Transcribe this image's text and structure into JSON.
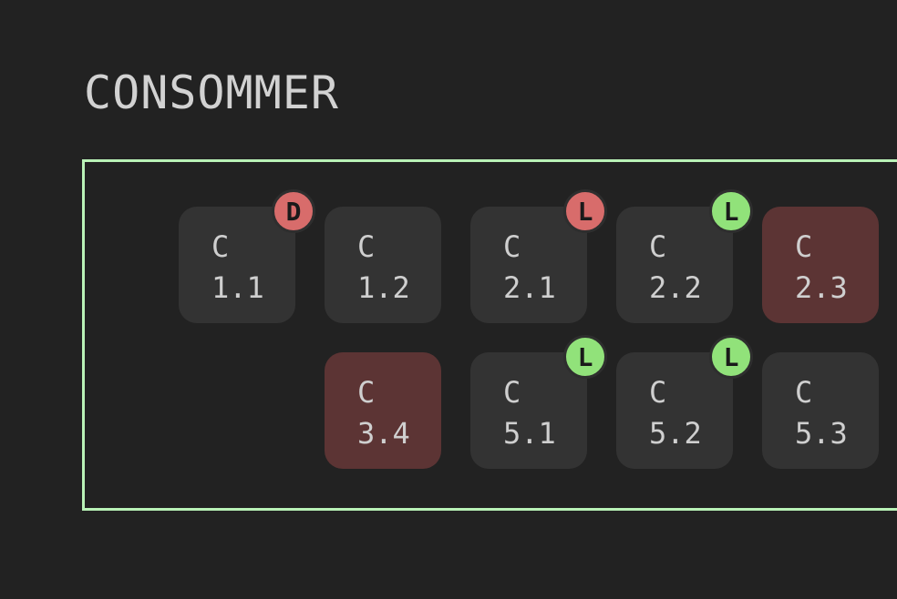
{
  "page": {
    "title": "CONSOMMER"
  },
  "colors": {
    "background": "#222222",
    "panel_border": "#b9f2b7",
    "tile": "#333333",
    "tile_alert": "#5c3434",
    "badge_red": "#d86c6b",
    "badge_green": "#91e27a"
  },
  "tiles": [
    {
      "prefix": "C",
      "code": "1.1",
      "badge": "D",
      "badge_color": "red",
      "alert": false
    },
    {
      "prefix": "C",
      "code": "1.2",
      "badge": null,
      "alert": false
    },
    {
      "prefix": "C",
      "code": "2.1",
      "badge": "L",
      "badge_color": "red",
      "alert": false
    },
    {
      "prefix": "C",
      "code": "2.2",
      "badge": "L",
      "badge_color": "green",
      "alert": false
    },
    {
      "prefix": "C",
      "code": "2.3",
      "badge": null,
      "alert": true
    },
    {
      "prefix": "C",
      "code": "3.4",
      "badge": null,
      "alert": true
    },
    {
      "prefix": "C",
      "code": "5.1",
      "badge": "L",
      "badge_color": "green",
      "alert": false
    },
    {
      "prefix": "C",
      "code": "5.2",
      "badge": "L",
      "badge_color": "green",
      "alert": false
    },
    {
      "prefix": "C",
      "code": "5.3",
      "badge": null,
      "alert": false
    }
  ]
}
